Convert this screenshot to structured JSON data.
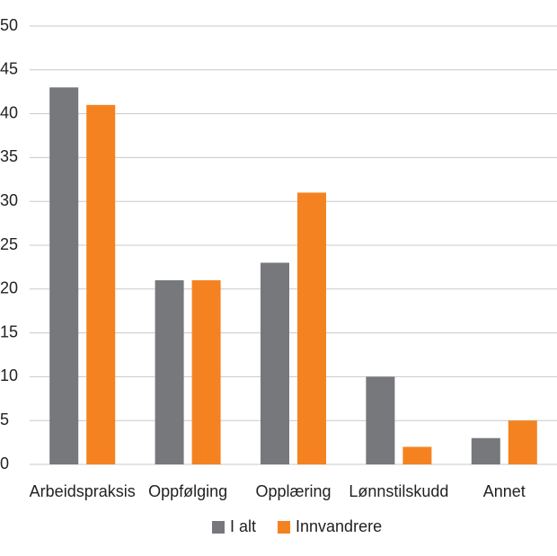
{
  "chart_data": {
    "type": "bar",
    "categories": [
      "Arbeidspraksis",
      "Oppfølging",
      "Opplæring",
      "Lønnstilskudd",
      "Annet"
    ],
    "series": [
      {
        "name": "I alt",
        "color": "#77787b",
        "values": [
          43,
          21,
          23,
          10,
          3
        ]
      },
      {
        "name": "Innvandrere",
        "color": "#f58220",
        "values": [
          41,
          21,
          31,
          2,
          5
        ]
      }
    ],
    "ylim": [
      0,
      50
    ],
    "yticks": [
      0,
      5,
      10,
      15,
      20,
      25,
      30,
      35,
      40,
      45,
      50
    ],
    "grid": true,
    "legend": "bottom"
  }
}
